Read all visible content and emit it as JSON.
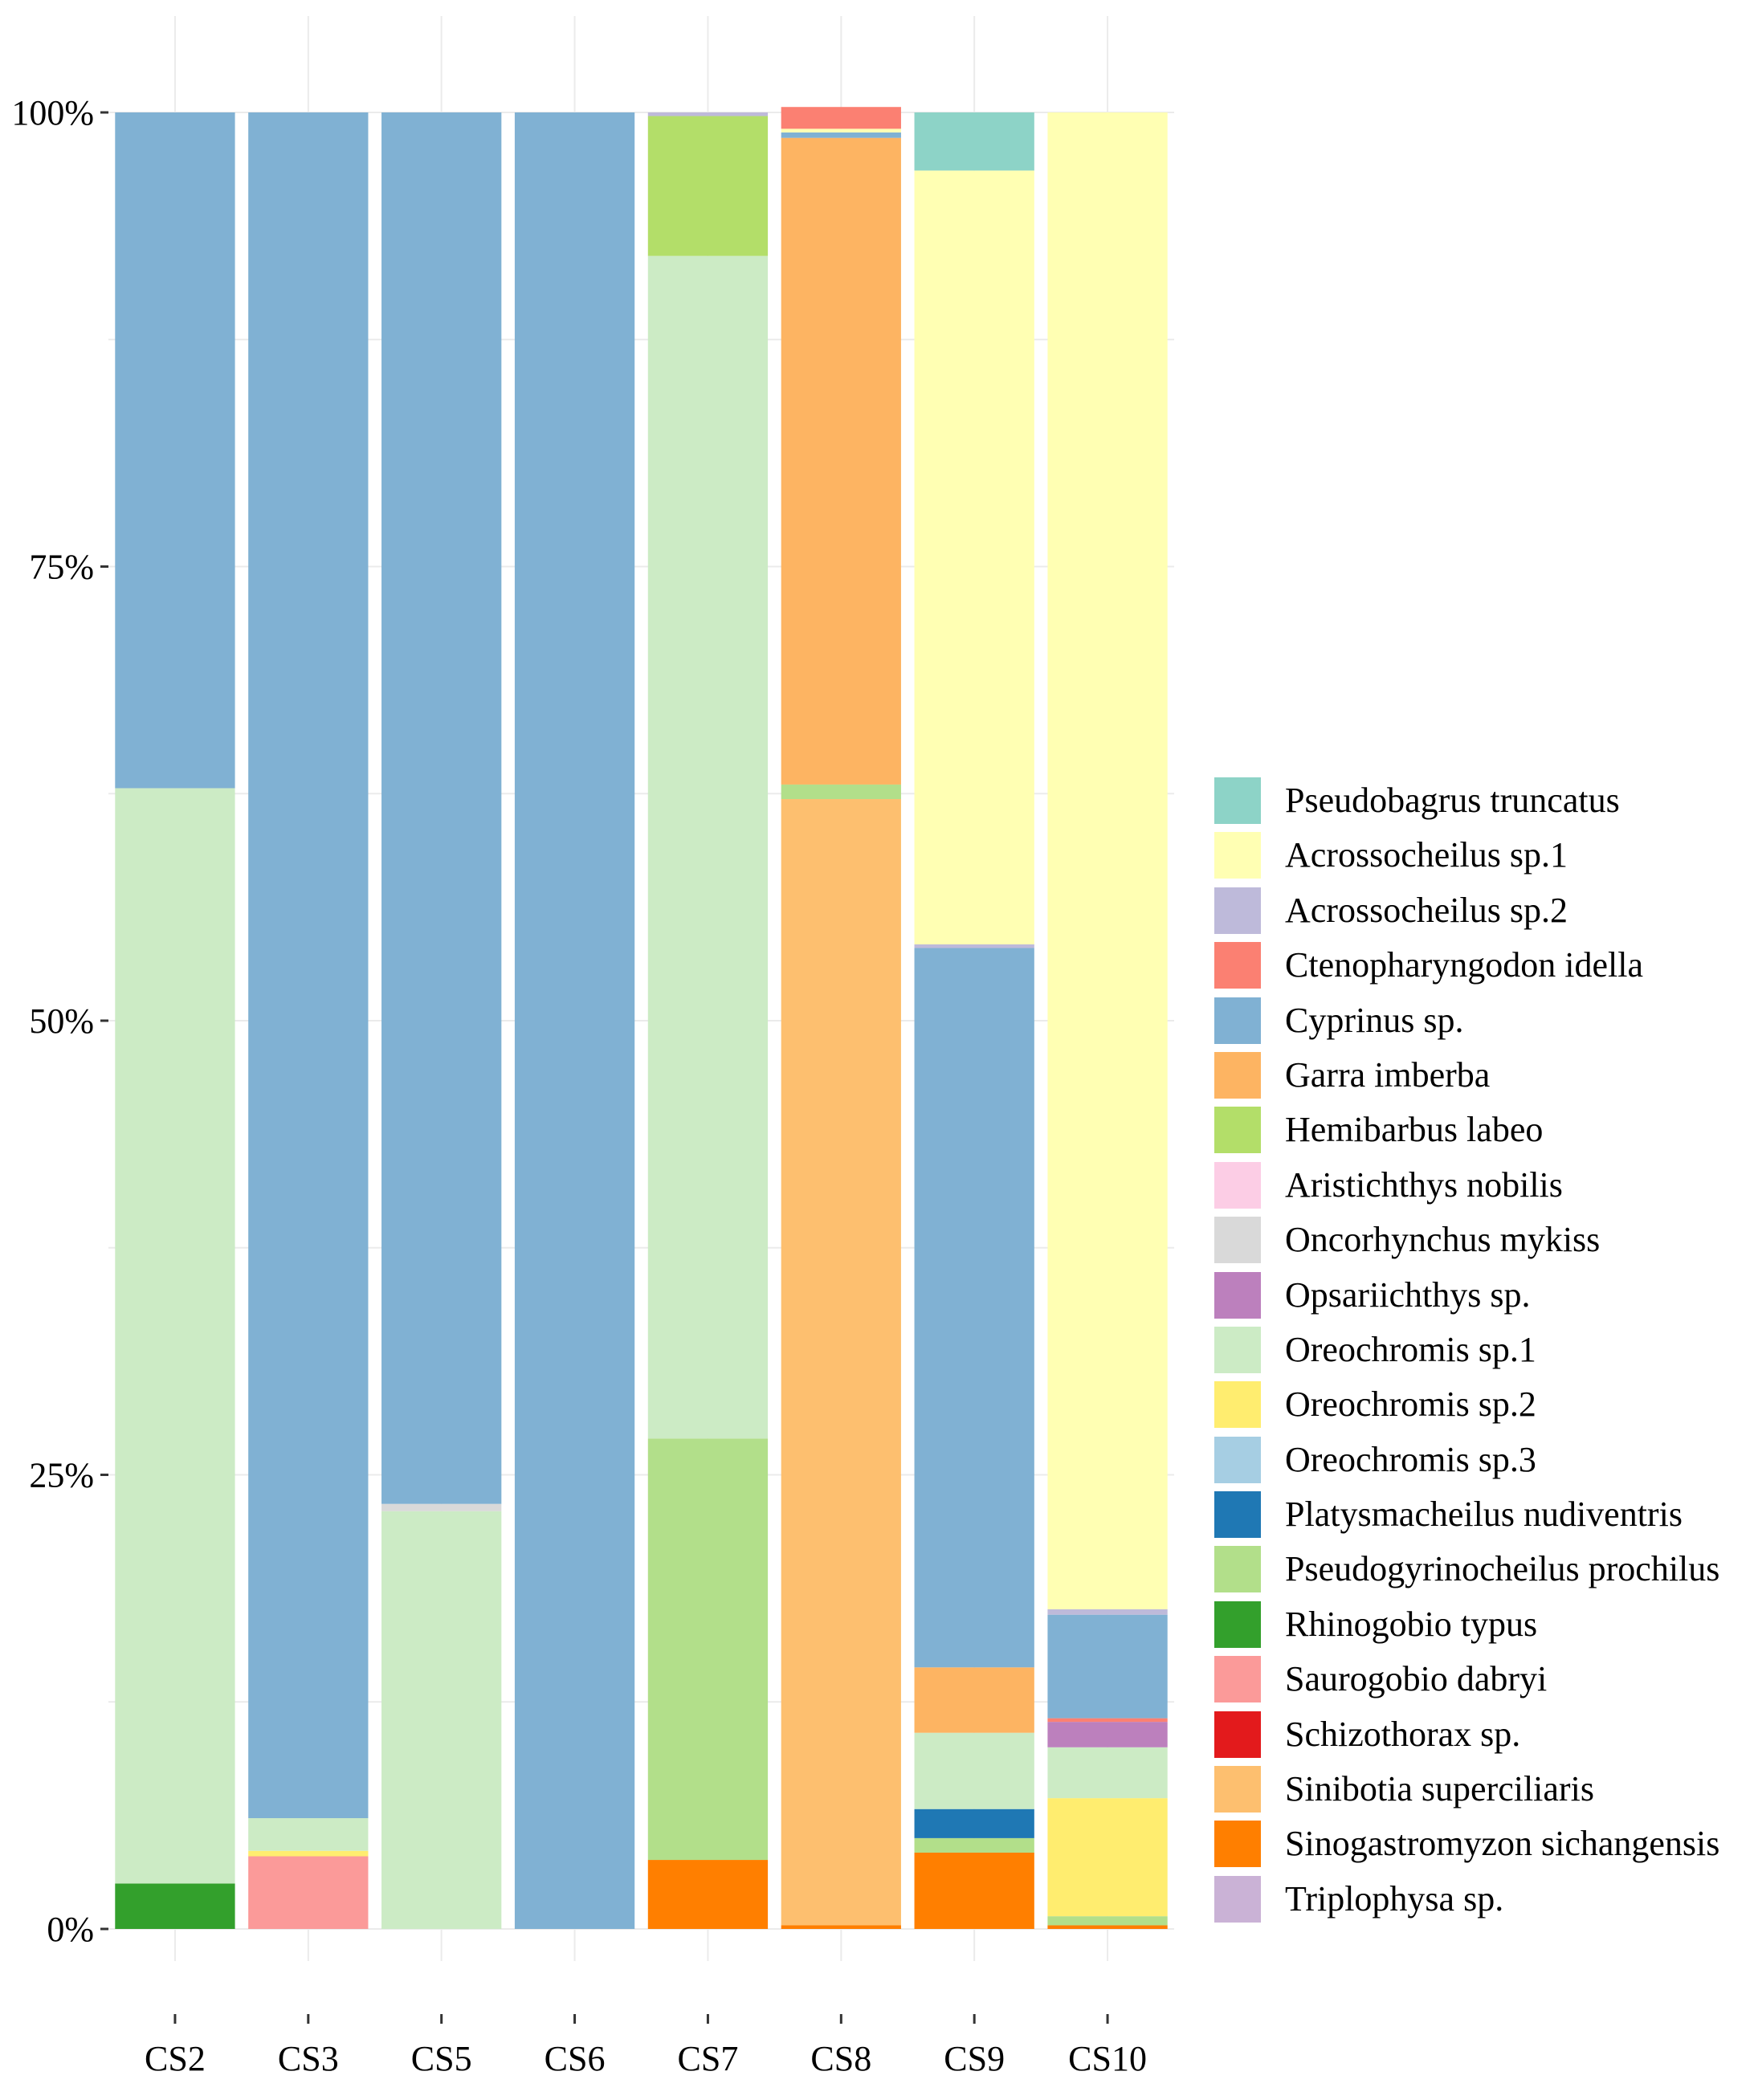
{
  "chart_data": {
    "type": "bar",
    "stacked": true,
    "title": "",
    "xlabel": "",
    "ylabel": "",
    "ylim": [
      0,
      100
    ],
    "y_ticks": [
      "0%",
      "25%",
      "50%",
      "75%",
      "100%"
    ],
    "categories": [
      "CS2",
      "CS3",
      "CS5",
      "CS6",
      "CS7",
      "CS8",
      "CS9",
      "CS10"
    ],
    "legend_position": "right",
    "legend": [
      {
        "name": "Pseudobagrus truncatus",
        "color": "#8DD3C7"
      },
      {
        "name": "Acrossocheilus sp.1",
        "color": "#FFFFB3"
      },
      {
        "name": "Acrossocheilus sp.2",
        "color": "#BEBADA"
      },
      {
        "name": "Ctenopharyngodon idella",
        "color": "#FB8072"
      },
      {
        "name": "Cyprinus sp.",
        "color": "#80B1D3"
      },
      {
        "name": "Garra imberba",
        "color": "#FDB462"
      },
      {
        "name": "Hemibarbus labeo",
        "color": "#B3DE69"
      },
      {
        "name": "Aristichthys nobilis",
        "color": "#FCCDE5"
      },
      {
        "name": "Oncorhynchus mykiss",
        "color": "#D9D9D9"
      },
      {
        "name": "Opsariichthys sp.",
        "color": "#BC80BD"
      },
      {
        "name": "Oreochromis sp.1",
        "color": "#CCEBC5"
      },
      {
        "name": "Oreochromis sp.2",
        "color": "#FFED6F"
      },
      {
        "name": "Oreochromis sp.3",
        "color": "#A6CEE3"
      },
      {
        "name": "Platysmacheilus nudiventris",
        "color": "#1F78B4"
      },
      {
        "name": "Pseudogyrinocheilus prochilus",
        "color": "#B2DF8A"
      },
      {
        "name": "Rhinogobio typus",
        "color": "#33A02C"
      },
      {
        "name": "Saurogobio dabryi",
        "color": "#FB9A99"
      },
      {
        "name": "Schizothorax sp.",
        "color": "#E31A1C"
      },
      {
        "name": "Sinibotia superciliaris",
        "color": "#FDBF6F"
      },
      {
        "name": "Sinogastromyzon sichangensis",
        "color": "#FF7F00"
      },
      {
        "name": "Triplophysa sp.",
        "color": "#CAB2D6"
      }
    ],
    "series": [
      {
        "name": "Sinogastromyzon sichangensis",
        "values": [
          0,
          0,
          0,
          0,
          3.8,
          0.2,
          4.2,
          0.2
        ]
      },
      {
        "name": "Rhinogobio typus",
        "values": [
          2.5,
          0,
          0,
          0,
          0,
          0,
          0,
          0
        ]
      },
      {
        "name": "Saurogobio dabryi",
        "values": [
          0,
          4.0,
          0,
          0,
          0,
          0,
          0,
          0
        ]
      },
      {
        "name": "Pseudogyrinocheilus prochilus",
        "values": [
          0,
          0,
          0,
          0,
          23.2,
          0,
          0.8,
          0.5
        ]
      },
      {
        "name": "Platysmacheilus nudiventris",
        "values": [
          0,
          0,
          0,
          0,
          0,
          0,
          1.6,
          0
        ]
      },
      {
        "name": "Oreochromis sp.2",
        "values": [
          0,
          0.3,
          0,
          0,
          0,
          0,
          0,
          6.5
        ]
      },
      {
        "name": "Sinibotia superciliaris",
        "values": [
          0,
          0,
          0,
          0,
          0,
          62.0,
          0,
          0
        ]
      },
      {
        "name": "Oreochromis sp.1",
        "values": [
          60.3,
          1.8,
          23.0,
          0,
          65.1,
          0,
          4.2,
          2.8
        ]
      },
      {
        "name": "Pseudogyrinocheilus prochilus",
        "values": [
          0,
          0,
          0,
          0,
          0,
          0.8,
          0,
          0
        ]
      },
      {
        "name": "Opsariichthys sp.",
        "values": [
          0,
          0,
          0,
          0,
          0,
          0,
          0,
          1.4
        ]
      },
      {
        "name": "Ctenopharyngodon idella",
        "values": [
          0,
          0,
          0,
          0,
          0,
          0,
          0,
          0.2
        ]
      },
      {
        "name": "Oncorhynchus mykiss",
        "values": [
          0,
          0,
          0.4,
          0,
          0,
          0,
          0,
          0
        ]
      },
      {
        "name": "Garra imberba",
        "values": [
          0,
          0,
          0,
          0,
          0,
          35.6,
          3.6,
          0
        ]
      },
      {
        "name": "Cyprinus sp.",
        "values": [
          37.2,
          93.9,
          76.6,
          100,
          0,
          0.3,
          39.6,
          5.7
        ]
      },
      {
        "name": "Acrossocheilus sp.2",
        "values": [
          0,
          0,
          0,
          0,
          0,
          0,
          0.2,
          0.3
        ]
      },
      {
        "name": "Hemibarbus labeo",
        "values": [
          0,
          0,
          0,
          0,
          7.7,
          0,
          0,
          0
        ]
      },
      {
        "name": "Acrossocheilus sp.1",
        "values": [
          0,
          0,
          0,
          0,
          0,
          0.2,
          42.6,
          82.4
        ]
      },
      {
        "name": "Ctenopharyngodon idella",
        "values": [
          0,
          0,
          0,
          0,
          0,
          1.2,
          0,
          0
        ]
      },
      {
        "name": "Pseudobagrus truncatus",
        "values": [
          0,
          0,
          0,
          0,
          0,
          0,
          3.2,
          0
        ]
      },
      {
        "name": "Acrossocheilus sp.2",
        "values": [
          0,
          0,
          0,
          0,
          0.2,
          0,
          0,
          0
        ]
      }
    ]
  }
}
